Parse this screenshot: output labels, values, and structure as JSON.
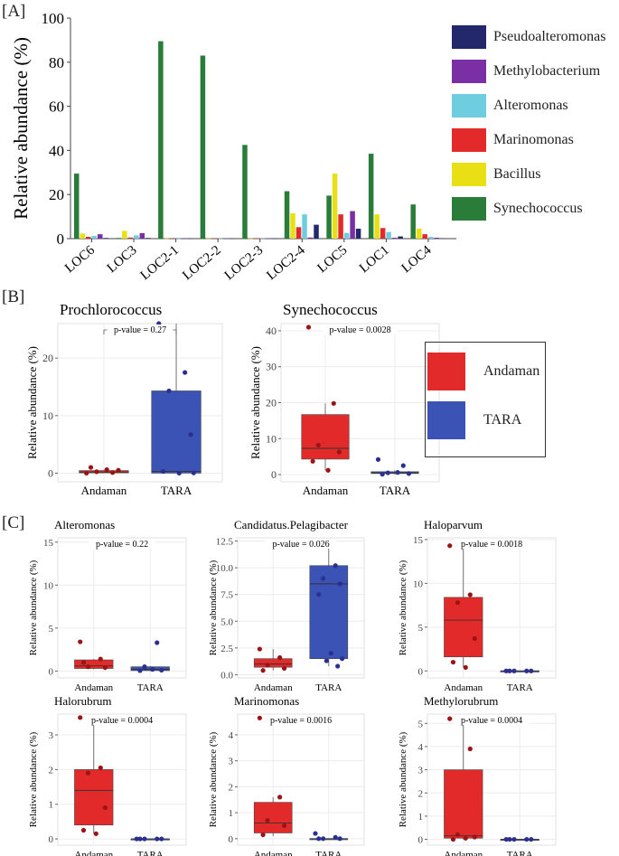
{
  "panels": {
    "a": "[A]",
    "b": "[B]",
    "c": "[C]"
  },
  "colors": {
    "Pseudoalteromonas": "#23286a",
    "Methylobacterium": "#7a2fa5",
    "Alteromonas": "#6fcde0",
    "Marinomonas": "#e32a2a",
    "Bacillus": "#e8e015",
    "Synechococcus": "#2a7d38",
    "Andaman": "#e32a2a",
    "TARA": "#3b53b5",
    "grid": "#ececec"
  },
  "legend_a": [
    "Pseudoalteromonas",
    "Methylobacterium",
    "Alteromonas",
    "Marinomonas",
    "Bacillus",
    "Synechococcus"
  ],
  "legend_b": [
    "Andaman",
    "TARA"
  ],
  "chart_data": [
    {
      "id": "A",
      "type": "bar",
      "ylabel": "Relative abundance (%)",
      "ylim": [
        0,
        100
      ],
      "yticks": [
        0,
        20,
        40,
        60,
        80,
        100
      ],
      "categories": [
        "LOC6",
        "LOC3",
        "LOC2-1",
        "LOC2-2",
        "LOC2-3",
        "LOC2-4",
        "LOC5",
        "LOC1",
        "LOC4"
      ],
      "series": [
        {
          "name": "Synechococcus",
          "values": [
            29.5,
            0.3,
            89.5,
            83,
            42.5,
            21.5,
            19.5,
            38.5,
            15.5
          ]
        },
        {
          "name": "Bacillus",
          "values": [
            2.3,
            3.5,
            0.1,
            0.1,
            0.1,
            11.5,
            29.5,
            11,
            4.5
          ]
        },
        {
          "name": "Marinomonas",
          "values": [
            0.8,
            0.5,
            0.1,
            0.1,
            0.1,
            5.2,
            11,
            4.8,
            2
          ]
        },
        {
          "name": "Alteromonas",
          "values": [
            1.2,
            1.5,
            0.1,
            0.1,
            0.1,
            11,
            2.6,
            3,
            0.8
          ]
        },
        {
          "name": "Methylobacterium",
          "values": [
            2,
            2.5,
            0.1,
            0.1,
            0.1,
            0.5,
            12.5,
            0.4,
            0.4
          ]
        },
        {
          "name": "Pseudoalteromonas",
          "values": [
            0.3,
            0.3,
            0.1,
            0.1,
            0.1,
            6.3,
            4.5,
            1,
            0.2
          ]
        }
      ]
    },
    {
      "id": "B1",
      "type": "box",
      "title": "Prochlorococcus",
      "ylabel": "Relative abundance (%)",
      "ylim": [
        -1.5,
        26
      ],
      "yticks": [
        0,
        10,
        20
      ],
      "pvalue": "p-value = 0.27",
      "groups": [
        {
          "name": "Andaman",
          "q1": 0.05,
          "median": 0.2,
          "q3": 0.45,
          "lo": 0,
          "hi": 0.45,
          "points": [
            0,
            0.1,
            0.25,
            0.5,
            1,
            0.6
          ]
        },
        {
          "name": "TARA",
          "q1": 0,
          "median": 0.3,
          "q3": 14.3,
          "lo": 0,
          "hi": 26,
          "points": [
            26,
            17.5,
            14.3,
            6.7,
            0.3,
            0,
            0.05
          ]
        }
      ]
    },
    {
      "id": "B2",
      "type": "box",
      "title": "Synechococcus",
      "ylabel": "Relative abundance (%)",
      "ylim": [
        -2,
        42
      ],
      "yticks": [
        0,
        10,
        20,
        30,
        40
      ],
      "pvalue": "p-value = 0.0028",
      "groups": [
        {
          "name": "Andaman",
          "q1": 4.3,
          "median": 7.3,
          "q3": 16.7,
          "lo": 1.2,
          "hi": 19.8,
          "points": [
            41,
            19.8,
            8.2,
            6.3,
            3.7,
            1.2
          ]
        },
        {
          "name": "TARA",
          "q1": 0.3,
          "median": 0.5,
          "q3": 0.8,
          "lo": 0,
          "hi": 1.2,
          "points": [
            4.2,
            2.5,
            0.5,
            0.3,
            0.1,
            0.6
          ]
        }
      ]
    },
    {
      "id": "C1",
      "type": "box",
      "title": "Alteromonas",
      "ylabel": "Relative abundance (%)",
      "ylim": [
        -0.8,
        15.5
      ],
      "yticks": [
        0,
        5,
        10,
        15
      ],
      "pvalue": "p-value = 0.22",
      "groups": [
        {
          "name": "Andaman",
          "q1": 0.3,
          "median": 0.6,
          "q3": 1.3,
          "lo": 0.2,
          "hi": 1.4,
          "points": [
            3.4,
            1.4,
            0.5,
            0.4,
            1.0
          ]
        },
        {
          "name": "TARA",
          "q1": 0.05,
          "median": 0.2,
          "q3": 0.5,
          "lo": 0,
          "hi": 0.6,
          "points": [
            14.8,
            3.3,
            0.5,
            0.1,
            0.05,
            0.2
          ]
        }
      ]
    },
    {
      "id": "C2",
      "type": "box",
      "title": "Candidatus.Pelagibacter",
      "ylabel": "Relative abundance (%)",
      "ylim": [
        -0.3,
        12.8
      ],
      "yticks": [
        0.0,
        2.5,
        5.0,
        7.5,
        10.0,
        12.5
      ],
      "pvalue": "p-value = 0.026",
      "groups": [
        {
          "name": "Andaman",
          "q1": 0.7,
          "median": 1.0,
          "q3": 1.5,
          "lo": 0.4,
          "hi": 2.4,
          "points": [
            2.4,
            1.6,
            0.9,
            0.6,
            0.4
          ]
        },
        {
          "name": "TARA",
          "q1": 1.5,
          "median": 8.5,
          "q3": 10.2,
          "lo": 0.8,
          "hi": 12.3,
          "points": [
            12.3,
            10.2,
            9.0,
            8.5,
            7.5,
            2.0,
            1.5,
            1.3,
            0.8
          ]
        }
      ]
    },
    {
      "id": "C3",
      "type": "box",
      "title": "Haloparvum",
      "ylabel": "Relative abundance (%)",
      "ylim": [
        -0.8,
        15.2
      ],
      "yticks": [
        0,
        5,
        10,
        15
      ],
      "pvalue": "p-value = 0.0018",
      "groups": [
        {
          "name": "Andaman",
          "q1": 1.6,
          "median": 5.8,
          "q3": 8.4,
          "lo": 0.4,
          "hi": 14.3,
          "points": [
            14.3,
            8.7,
            7.8,
            3.7,
            1.0,
            0.4
          ]
        },
        {
          "name": "TARA",
          "q1": 0,
          "median": 0,
          "q3": 0,
          "lo": 0,
          "hi": 0,
          "points": [
            0,
            0,
            0,
            0,
            0
          ]
        }
      ]
    },
    {
      "id": "C4",
      "type": "box",
      "title": "Halorubrum",
      "ylabel": "Relative abundance (%)",
      "ylim": [
        -0.18,
        3.6
      ],
      "yticks": [
        0,
        1,
        2,
        3
      ],
      "pvalue": "p-value = 0.0004",
      "groups": [
        {
          "name": "Andaman",
          "q1": 0.4,
          "median": 1.4,
          "q3": 2.0,
          "lo": 0.15,
          "hi": 3.5,
          "points": [
            3.5,
            2.05,
            1.9,
            0.9,
            0.25,
            0.15
          ]
        },
        {
          "name": "TARA",
          "q1": 0,
          "median": 0,
          "q3": 0,
          "lo": 0,
          "hi": 0,
          "points": [
            0,
            0,
            0,
            0,
            0
          ]
        }
      ]
    },
    {
      "id": "C5",
      "type": "box",
      "title": "Marinomonas",
      "ylabel": "Relative abundance (%)",
      "ylim": [
        -0.25,
        4.8
      ],
      "yticks": [
        0,
        1,
        2,
        3,
        4
      ],
      "pvalue": "p-value = 0.0016",
      "groups": [
        {
          "name": "Andaman",
          "q1": 0.22,
          "median": 0.6,
          "q3": 1.4,
          "lo": 0.1,
          "hi": 1.6,
          "points": [
            4.65,
            1.6,
            0.7,
            0.5,
            0.15
          ]
        },
        {
          "name": "TARA",
          "q1": 0,
          "median": 0,
          "q3": 0,
          "lo": 0,
          "hi": 0,
          "points": [
            0.2,
            0.05,
            0,
            0,
            0
          ]
        }
      ]
    },
    {
      "id": "C6",
      "type": "box",
      "title": "Methylorubrum",
      "ylabel": "Relative abundance (%)",
      "ylim": [
        -0.25,
        5.4
      ],
      "yticks": [
        0,
        1,
        2,
        3,
        4,
        5
      ],
      "pvalue": "p-value = 0.0004",
      "groups": [
        {
          "name": "Andaman",
          "q1": 0.05,
          "median": 0.15,
          "q3": 3.0,
          "lo": 0,
          "hi": 5.2,
          "points": [
            5.2,
            3.9,
            0.2,
            0.1,
            0.0,
            0.05
          ]
        },
        {
          "name": "TARA",
          "q1": 0,
          "median": 0,
          "q3": 0,
          "lo": 0,
          "hi": 0,
          "points": [
            0,
            0,
            0,
            0,
            0
          ]
        }
      ]
    }
  ]
}
